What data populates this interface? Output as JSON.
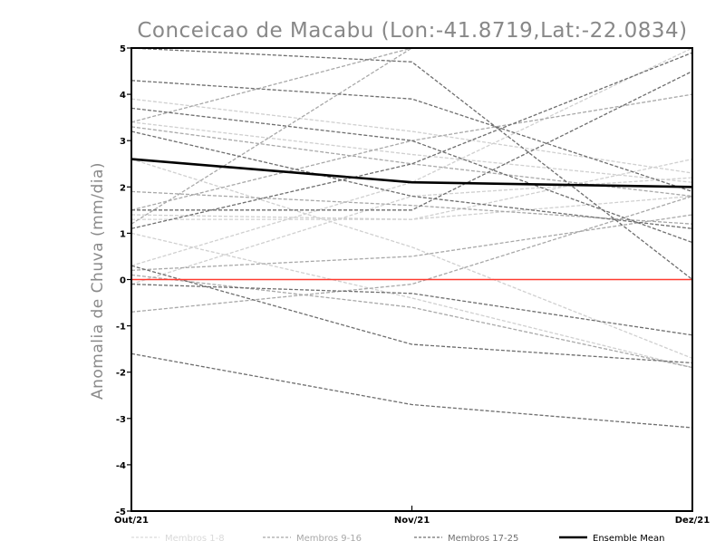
{
  "chart_data": {
    "type": "line",
    "title": "Conceicao de Macabu (Lon:-41.8719,Lat:-22.0834)",
    "xlabel": "",
    "ylabel": "Anomalia de Chuva (mm/dia)",
    "categories": [
      "Out/21",
      "Nov/21",
      "Dez/21"
    ],
    "ylim": [
      -5,
      5
    ],
    "yticks": [
      -5,
      -4,
      -3,
      -2,
      -1,
      0,
      1,
      2,
      3,
      4,
      5
    ],
    "ytick_labels": [
      "-5",
      "-4",
      "-3",
      "-2",
      "-1",
      "0",
      "1",
      "2",
      "3",
      "4",
      "5"
    ],
    "grid": false,
    "zero_line": {
      "value": 0,
      "color": "#ff3b30"
    },
    "legend": {
      "position": "bottom",
      "entries": [
        {
          "label": "Membros 1-8",
          "color": "#d9d9d9",
          "style": "dashed"
        },
        {
          "label": "Membros 9-16",
          "color": "#a8a8a8",
          "style": "dashed"
        },
        {
          "label": "Membros 17-25",
          "color": "#707070",
          "style": "dashed"
        },
        {
          "label": "Ensemble Mean",
          "color": "#000000",
          "style": "solid"
        }
      ]
    },
    "groups": [
      {
        "name": "Membros 1-8",
        "color": "#d0d0d0",
        "lines": [
          [
            3.9,
            3.2,
            2.3
          ],
          [
            2.6,
            0.7,
            -1.7
          ],
          [
            1.3,
            1.3,
            2.6
          ],
          [
            0.3,
            2.1,
            5.0
          ],
          [
            3.4,
            2.7,
            2.1
          ],
          [
            1.0,
            -0.4,
            -1.9
          ],
          [
            1.4,
            1.3,
            1.8
          ],
          [
            -0.1,
            1.8,
            2.2
          ]
        ]
      },
      {
        "name": "Membros 9-16",
        "color": "#a8a8a8",
        "lines": [
          [
            1.5,
            3.0,
            4.0
          ],
          [
            1.9,
            1.6,
            1.2
          ],
          [
            3.3,
            2.5,
            1.8
          ],
          [
            0.2,
            0.5,
            1.4
          ],
          [
            -0.7,
            -0.1,
            1.8
          ],
          [
            1.2,
            5.0,
            5.0
          ],
          [
            3.4,
            5.0,
            5.0
          ],
          [
            0.1,
            -0.6,
            -1.9
          ]
        ]
      },
      {
        "name": "Membros 17-25",
        "color": "#6e6e6e",
        "lines": [
          [
            4.3,
            3.9,
            1.9
          ],
          [
            3.7,
            3.0,
            0.8
          ],
          [
            3.2,
            1.8,
            1.1
          ],
          [
            1.5,
            1.5,
            4.5
          ],
          [
            1.1,
            2.5,
            4.9
          ],
          [
            0.3,
            -1.4,
            -1.8
          ],
          [
            -1.6,
            -2.7,
            -3.2
          ],
          [
            -0.1,
            -0.3,
            -1.2
          ],
          [
            5.0,
            4.7,
            0.0
          ]
        ]
      }
    ],
    "series": [
      {
        "name": "Ensemble Mean",
        "values": [
          2.6,
          2.1,
          2.0
        ],
        "color": "#000000"
      }
    ]
  }
}
